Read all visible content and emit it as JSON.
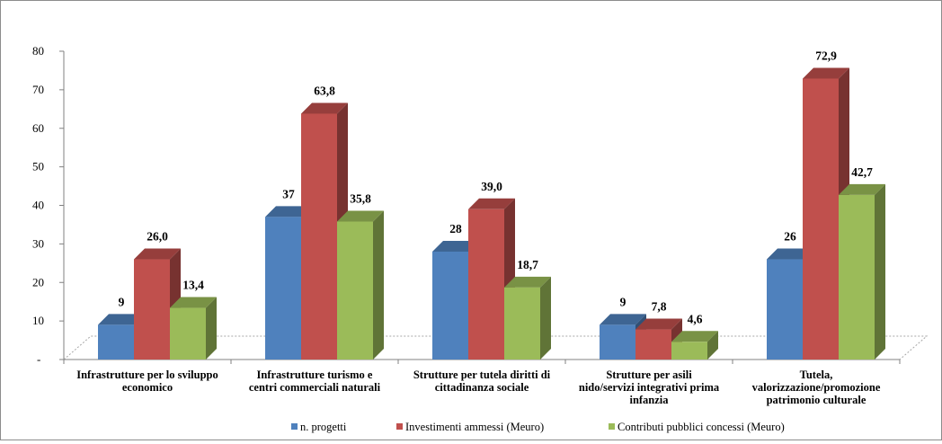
{
  "chart_data": {
    "type": "bar",
    "title": "",
    "xlabel": "",
    "ylabel": "",
    "ylim": [
      0,
      80
    ],
    "yticks": [
      "-",
      "10",
      "20",
      "30",
      "40",
      "50",
      "60",
      "70",
      "80"
    ],
    "grid": false,
    "legend_position": "bottom",
    "categories": [
      [
        "Infrastrutture per lo sviluppo",
        "economico"
      ],
      [
        "Infrastrutture turismo e",
        "centri commerciali naturali"
      ],
      [
        "Strutture per tutela diritti di",
        "cittadinanza sociale"
      ],
      [
        "Strutture per asili",
        "nido/servizi integrativi prima",
        "infanzia"
      ],
      [
        "Tutela,",
        "valorizzazione/promozione",
        "patrimonio culturale"
      ]
    ],
    "series": [
      {
        "name": "n. progetti",
        "color": "#4f81bd",
        "values": [
          9,
          37,
          28,
          9,
          26
        ],
        "labels": [
          "9",
          "37",
          "28",
          "9",
          "26"
        ]
      },
      {
        "name": "Investimenti ammessi (Meuro)",
        "color": "#c0504d",
        "values": [
          26.0,
          63.8,
          39.0,
          7.8,
          72.9
        ],
        "labels": [
          "26,0",
          "63,8",
          "39,0",
          "7,8",
          "72,9"
        ]
      },
      {
        "name": "Contributi pubblici concessi (Meuro)",
        "color": "#9bbb59",
        "values": [
          13.4,
          35.8,
          18.7,
          4.6,
          42.7
        ],
        "labels": [
          "13,4",
          "35,8",
          "18,7",
          "4,6",
          "42,7"
        ]
      }
    ]
  }
}
